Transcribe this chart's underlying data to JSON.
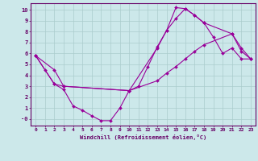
{
  "xlabel": "Windchill (Refroidissement éolien,°C)",
  "bg_color": "#cce8ea",
  "line_color": "#990099",
  "grid_color": "#aacccc",
  "axis_color": "#660066",
  "text_color": "#660066",
  "xlim": [
    -0.5,
    23.5
  ],
  "ylim": [
    -0.6,
    10.6
  ],
  "yticks": [
    0,
    1,
    2,
    3,
    4,
    5,
    6,
    7,
    8,
    9,
    10
  ],
  "ytick_labels": [
    "-0",
    "1",
    "2",
    "3",
    "4",
    "5",
    "6",
    "7",
    "8",
    "9",
    "10"
  ],
  "xticks": [
    0,
    1,
    2,
    3,
    4,
    5,
    6,
    7,
    8,
    9,
    10,
    11,
    12,
    13,
    14,
    15,
    16,
    17,
    18,
    19,
    20,
    21,
    22,
    23
  ],
  "line1_x": [
    0,
    1,
    2,
    3,
    4,
    5,
    6,
    7,
    8,
    9,
    10,
    11,
    12,
    13,
    14,
    15,
    16,
    17,
    18,
    19,
    20,
    21,
    22,
    23
  ],
  "line1_y": [
    5.8,
    4.5,
    3.2,
    2.7,
    1.2,
    0.8,
    0.3,
    -0.15,
    -0.15,
    1.0,
    2.6,
    3.0,
    4.8,
    6.6,
    8.1,
    9.2,
    10.1,
    9.5,
    8.8,
    7.5,
    6.0,
    6.5,
    5.5,
    5.5
  ],
  "line2_x": [
    0,
    2,
    3,
    10,
    13,
    14,
    15,
    16,
    17,
    18,
    21,
    22,
    23
  ],
  "line2_y": [
    5.8,
    3.2,
    3.0,
    2.6,
    3.5,
    4.2,
    4.8,
    5.5,
    6.2,
    6.8,
    7.8,
    6.2,
    5.5
  ],
  "line3_x": [
    0,
    2,
    3,
    10,
    13,
    14,
    15,
    16,
    17,
    18,
    21,
    22,
    23
  ],
  "line3_y": [
    5.8,
    4.5,
    3.0,
    2.6,
    6.5,
    8.1,
    10.2,
    10.1,
    9.5,
    8.8,
    7.8,
    6.5,
    5.5
  ]
}
